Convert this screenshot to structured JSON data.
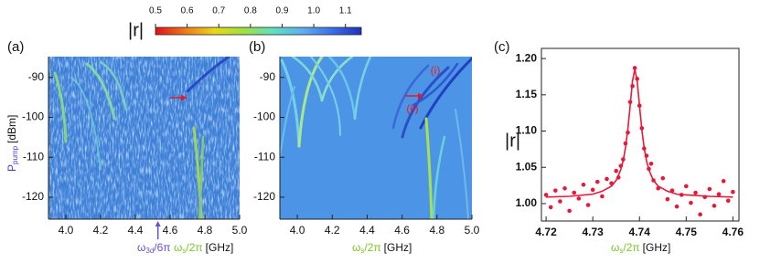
{
  "colorbar": {
    "label": "|r|",
    "lim": [
      0.5,
      1.15
    ],
    "ticks": [
      0.5,
      0.6,
      0.7,
      0.8,
      0.9,
      {
        "value": 1.0,
        "label": "1.0"
      },
      1.1
    ],
    "colors": [
      "#e0101a",
      "#f07818",
      "#e8d818",
      "#a0e040",
      "#60e0c0",
      "#5fb0f0",
      "#3a70e8",
      "#2030c0"
    ]
  },
  "chart_data": [
    {
      "type": "heatmap",
      "panel_label": "(a)",
      "ylabel": {
        "main": "P",
        "sub": "pump",
        "unit": "[dBm]"
      },
      "xlabel": {
        "main": "ω",
        "sub": "s",
        "rest": "/2π",
        "unit": "[GHz]"
      },
      "annotation": {
        "main": "ω",
        "sub": "3d",
        "rest": "/6π",
        "x": 4.53
      },
      "xlim": [
        3.9,
        5.0
      ],
      "ylim": [
        -125.5,
        -84.8
      ],
      "xticks": [
        {
          "value": 4.0,
          "label": "4.0"
        },
        4.2,
        4.4,
        4.6,
        4.8,
        {
          "value": 5.0,
          "label": "5.0"
        }
      ],
      "yticks": [
        -90,
        -100,
        -110,
        -120
      ]
    },
    {
      "type": "heatmap",
      "panel_label": "(b)",
      "xlabel": {
        "main": "ω",
        "sub": "s",
        "rest": "/2π",
        "unit": "[GHz]"
      },
      "labels": [
        "(i)",
        "(ii)"
      ],
      "xlim": [
        3.9,
        5.0
      ],
      "ylim": [
        -125.5,
        -84.8
      ],
      "xticks": [
        {
          "value": 4.0,
          "label": "4.0"
        },
        4.2,
        4.4,
        4.6,
        4.8,
        {
          "value": 5.0,
          "label": "5.0"
        }
      ],
      "yticks": [
        -90,
        -100,
        -110,
        -120
      ]
    },
    {
      "type": "scatter",
      "panel_label": "(c)",
      "ylabel": "|r|",
      "xlabel": {
        "main": "ω",
        "sub": "s",
        "rest": "/2π",
        "unit": "[GHz]"
      },
      "xlim": [
        4.719,
        4.7613
      ],
      "ylim": [
        0.976,
        1.214
      ],
      "xticks": [
        4.72,
        4.73,
        4.74,
        4.75,
        4.76
      ],
      "yticks": [
        {
          "value": 1.0,
          "label": "1.00"
        },
        1.05,
        {
          "value": 1.1,
          "label": "1.10"
        },
        1.15,
        {
          "value": 1.2,
          "label": "1.20"
        }
      ],
      "series": [
        {
          "color": "#e8183a",
          "style": "points",
          "x": [
            4.72,
            4.721,
            4.722,
            4.723,
            4.724,
            4.725,
            4.726,
            4.727,
            4.728,
            4.729,
            4.73,
            4.731,
            4.732,
            4.733,
            4.734,
            4.735,
            4.7355,
            4.736,
            4.7365,
            4.737,
            4.7375,
            4.738,
            4.7385,
            4.739,
            4.7395,
            4.74,
            4.7405,
            4.741,
            4.7415,
            4.742,
            4.7425,
            4.743,
            4.744,
            4.745,
            4.746,
            4.747,
            4.748,
            4.749,
            4.75,
            4.751,
            4.752,
            4.753,
            4.754,
            4.755,
            4.756,
            4.757,
            4.758,
            4.759,
            4.76
          ],
          "values": [
            1.012,
            0.995,
            1.018,
            1.003,
            1.021,
            0.99,
            1.015,
            1.007,
            1.026,
            0.998,
            1.019,
            1.03,
            1.01,
            1.034,
            1.028,
            1.045,
            1.036,
            1.052,
            1.061,
            1.083,
            1.098,
            1.14,
            1.162,
            1.187,
            1.172,
            1.135,
            1.104,
            1.076,
            1.066,
            1.048,
            1.055,
            1.032,
            1.021,
            1.035,
            1.006,
            1.018,
            0.996,
            1.012,
            1.024,
            1.001,
            1.015,
            0.985,
            1.009,
            1.02,
            0.997,
            1.013,
            1.031,
            1.004,
            1.016
          ]
        },
        {
          "color": "#e8183a",
          "style": "line",
          "x": [
            4.72,
            4.725,
            4.73,
            4.732,
            4.734,
            4.735,
            4.7355,
            4.736,
            4.7365,
            4.737,
            4.7375,
            4.738,
            4.7385,
            4.739,
            4.7395,
            4.74,
            4.7405,
            4.741,
            4.7415,
            4.742,
            4.7425,
            4.743,
            4.744,
            4.746,
            4.748,
            4.75,
            4.755,
            4.76
          ],
          "values": [
            1.009,
            1.01,
            1.013,
            1.017,
            1.024,
            1.032,
            1.039,
            1.047,
            1.059,
            1.077,
            1.102,
            1.135,
            1.169,
            1.185,
            1.169,
            1.135,
            1.102,
            1.077,
            1.059,
            1.047,
            1.039,
            1.032,
            1.024,
            1.017,
            1.013,
            1.012,
            1.01,
            1.009
          ]
        }
      ]
    }
  ]
}
